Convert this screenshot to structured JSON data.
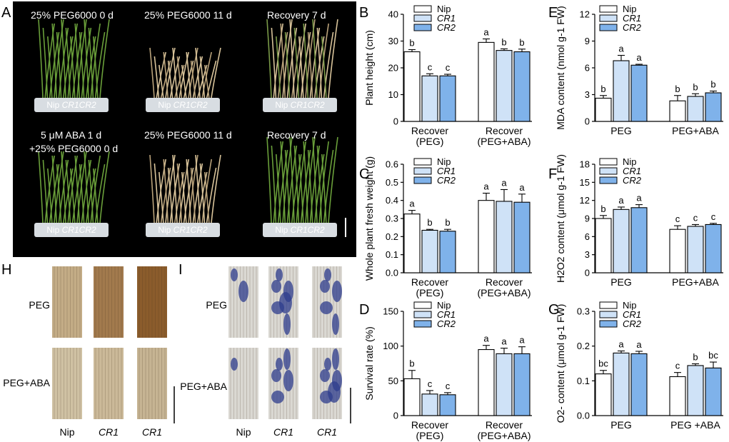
{
  "panel_letters": {
    "A": "A",
    "B": "B",
    "C": "C",
    "D": "D",
    "E": "E",
    "F": "F",
    "G": "G",
    "H": "H",
    "I": "I"
  },
  "photo_a": {
    "top": [
      "25% PEG6000 0 d",
      "25% PEG6000 11 d",
      "Recovery 7 d"
    ],
    "bottom_line1": "5 μM ABA 1 d",
    "bottom_line2": "+25% PEG6000 0 d",
    "bottom": [
      "25% PEG6000 11 d",
      "Recovery 7 d"
    ],
    "pot_label": [
      "Nip",
      "CR1",
      "CR2"
    ]
  },
  "photo_h": {
    "rows": [
      "PEG",
      "PEG+ABA"
    ],
    "cols": [
      "Nip",
      "CR1",
      "CR1"
    ]
  },
  "photo_i": {
    "rows": [
      "PEG",
      "PEG+ABA"
    ],
    "cols": [
      "Nip",
      "CR1",
      "CR1"
    ]
  },
  "legend": [
    "Nip",
    "CR1",
    "CR2"
  ],
  "colors": {
    "Nip": "#ffffff",
    "CR1": "#cfe2f7",
    "CR2": "#7fb2ea",
    "leaf_brown": "#a47f52",
    "leaf_blue": "#3b4f95",
    "photo_bg": "#000000"
  },
  "chart_data": [
    {
      "id": "B",
      "type": "bar",
      "categories": [
        "Recover\n(PEG)",
        "Recover\n(PEG+ABA)"
      ],
      "series": [
        {
          "name": "Nip",
          "values": [
            26,
            29.5
          ],
          "errors": [
            0.8,
            1.3
          ],
          "letters": [
            "b",
            "a"
          ]
        },
        {
          "name": "CR1",
          "values": [
            17,
            26.5
          ],
          "errors": [
            0.8,
            0.6
          ],
          "letters": [
            "c",
            "b"
          ]
        },
        {
          "name": "CR2",
          "values": [
            17,
            26
          ],
          "errors": [
            0.6,
            1.0
          ],
          "letters": [
            "c",
            "b"
          ]
        }
      ],
      "ylabel": "Plant height (cm)",
      "ylim": [
        0,
        40
      ],
      "yticks": [
        0,
        10,
        20,
        30,
        40
      ]
    },
    {
      "id": "C",
      "type": "bar",
      "categories": [
        "Recover\n(PEG)",
        "Recover\n(PEG+ABA)"
      ],
      "series": [
        {
          "name": "Nip",
          "values": [
            0.325,
            0.4
          ],
          "errors": [
            0.02,
            0.04
          ],
          "letters": [
            "a",
            "a"
          ]
        },
        {
          "name": "CR1",
          "values": [
            0.235,
            0.395
          ],
          "errors": [
            0.005,
            0.065
          ],
          "letters": [
            "b",
            "a"
          ]
        },
        {
          "name": "CR2",
          "values": [
            0.23,
            0.39
          ],
          "errors": [
            0.01,
            0.045
          ],
          "letters": [
            "b",
            "a"
          ]
        }
      ],
      "ylabel": "Whole plant fresh weight (g)",
      "ylim": [
        0,
        0.6
      ],
      "yticks": [
        "0.0",
        "0.1",
        "0.2",
        "0.3",
        "0.4",
        "0.5",
        "0.6"
      ]
    },
    {
      "id": "D",
      "type": "bar",
      "categories": [
        "Recover\n(PEG)",
        "Recover\n(PEG+ABA)"
      ],
      "series": [
        {
          "name": "Nip",
          "values": [
            53,
            95
          ],
          "errors": [
            12,
            6
          ],
          "letters": [
            "b",
            "a"
          ]
        },
        {
          "name": "CR1",
          "values": [
            31,
            89
          ],
          "errors": [
            5,
            8
          ],
          "letters": [
            "c",
            "a"
          ]
        },
        {
          "name": "CR2",
          "values": [
            30,
            89
          ],
          "errors": [
            3,
            10
          ],
          "letters": [
            "c",
            "a"
          ]
        }
      ],
      "ylabel": "Survival rate (%)",
      "ylim": [
        0,
        150
      ],
      "yticks": [
        0,
        50,
        100,
        150
      ]
    },
    {
      "id": "E",
      "type": "bar",
      "categories": [
        "PEG",
        "PEG+ABA"
      ],
      "series": [
        {
          "name": "Nip",
          "values": [
            2.6,
            2.3
          ],
          "errors": [
            0.3,
            0.6
          ],
          "letters": [
            "b",
            "b"
          ]
        },
        {
          "name": "CR1",
          "values": [
            6.8,
            2.8
          ],
          "errors": [
            0.6,
            0.3
          ],
          "letters": [
            "a",
            "b"
          ]
        },
        {
          "name": "CR2",
          "values": [
            6.3,
            3.2
          ],
          "errors": [
            0.1,
            0.2
          ],
          "letters": [
            "a",
            "b"
          ]
        }
      ],
      "ylabel": "MDA content (nmol g-1 FW)",
      "ylim": [
        0,
        12
      ],
      "yticks": [
        0,
        3,
        6,
        9,
        12
      ]
    },
    {
      "id": "F",
      "type": "bar",
      "categories": [
        "PEG",
        "PEG+ABA"
      ],
      "series": [
        {
          "name": "Nip",
          "values": [
            9.0,
            7.2
          ],
          "errors": [
            0.5,
            0.6
          ],
          "letters": [
            "b",
            "c"
          ]
        },
        {
          "name": "CR1",
          "values": [
            10.5,
            7.7
          ],
          "errors": [
            0.4,
            0.3
          ],
          "letters": [
            "a",
            "c"
          ]
        },
        {
          "name": "CR2",
          "values": [
            10.8,
            8.0
          ],
          "errors": [
            0.5,
            0.2
          ],
          "letters": [
            "a",
            "c"
          ]
        }
      ],
      "ylabel": "H2O2 content (μmol g-1 FW)",
      "ylim": [
        0,
        18
      ],
      "yticks": [
        0,
        3,
        6,
        9,
        12,
        15,
        18
      ]
    },
    {
      "id": "G",
      "type": "bar",
      "categories": [
        "PEG",
        "PEG +ABA"
      ],
      "series": [
        {
          "name": "Nip",
          "values": [
            0.12,
            0.112
          ],
          "errors": [
            0.01,
            0.012
          ],
          "letters": [
            "bc",
            "c"
          ]
        },
        {
          "name": "CR1",
          "values": [
            0.18,
            0.144
          ],
          "errors": [
            0.006,
            0.005
          ],
          "letters": [
            "a",
            "b"
          ]
        },
        {
          "name": "CR2",
          "values": [
            0.178,
            0.137
          ],
          "errors": [
            0.007,
            0.017
          ],
          "letters": [
            "a",
            "bc"
          ]
        }
      ],
      "ylabel": "O2- content (μmol g-1 FW)",
      "ylim": [
        0,
        0.3
      ],
      "yticks": [
        "0.0",
        "0.1",
        "0.2",
        "0.3"
      ]
    }
  ]
}
